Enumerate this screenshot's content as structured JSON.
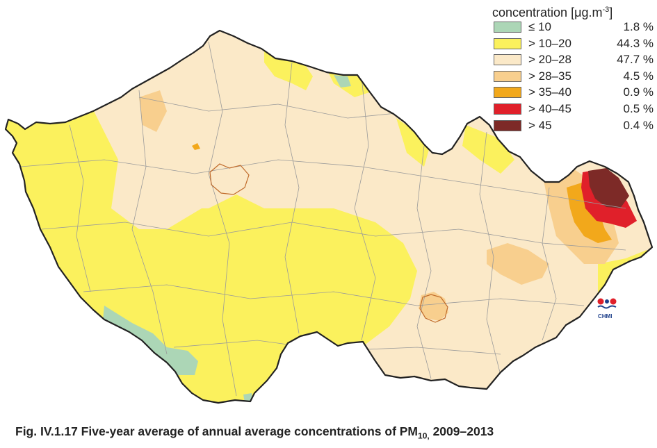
{
  "legend": {
    "title_main": "concentration [μg.m",
    "title_exp": "-3",
    "title_close": "]",
    "items": [
      {
        "label": "≤ 10",
        "percent": "1.8 %",
        "color": "#acd6b6"
      },
      {
        "label": "> 10–20",
        "percent": "44.3 %",
        "color": "#fbf15d"
      },
      {
        "label": "> 20–28",
        "percent": "47.7 %",
        "color": "#fbe9c8"
      },
      {
        "label": "> 28–35",
        "percent": "4.5 %",
        "color": "#f8cf8e"
      },
      {
        "label": "> 35–40",
        "percent": "0.9 %",
        "color": "#f2a81b"
      },
      {
        "label": "> 40–45",
        "percent": "0.5 %",
        "color": "#e0202a"
      },
      {
        "label": "> 45",
        "percent": "0.4 %",
        "color": "#7d2a27"
      }
    ]
  },
  "logo": {
    "text": "CHMI",
    "icon": "chmi-logo-icon"
  },
  "caption": {
    "prefix": "Fig. IV.1.17  Five-year average of annual average concentrations of PM",
    "subscript": "10,",
    "suffix": " 2009–2013"
  },
  "colors": {
    "border": "#222222",
    "district_lines": "#9a9a9a",
    "city_outline": "#c06a2a"
  }
}
